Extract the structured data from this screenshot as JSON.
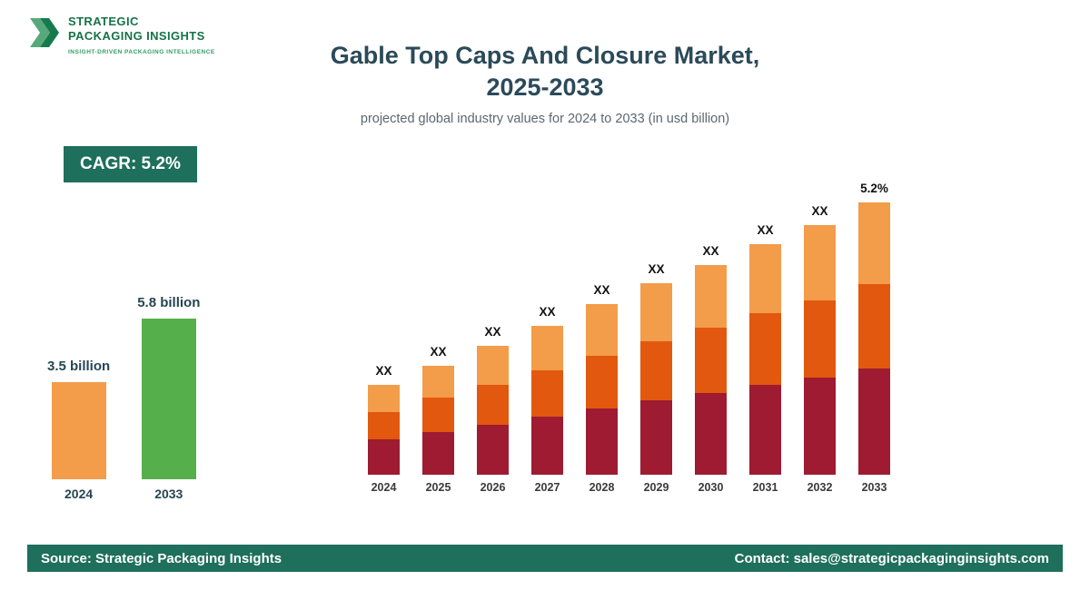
{
  "logo": {
    "line1": "STRATEGIC",
    "line2": "PACKAGING INSIGHTS",
    "tagline": "INSIGHT-DRIVEN PACKAGING INTELLIGENCE"
  },
  "header": {
    "title_line1": "Gable Top Caps And Closure Market,",
    "title_line2": "2025-2033",
    "subtitle": "projected global industry values for 2024 to 2033 (in usd billion)"
  },
  "cagr_badge": "CAGR: 5.2%",
  "footer": {
    "source": "Source: Strategic Packaging Insights",
    "contact": "Contact: sales@strategicpackaginginsights.com"
  },
  "colors": {
    "brand_teal": "#1e6f5c",
    "title_dark": "#2b4a59",
    "logo_green": "#157347",
    "bar_orange": "#F39C4A",
    "bar_green": "#55B04B",
    "segment_maroon": "#9E1B32",
    "segment_orange_red": "#E2580E",
    "segment_light_orange": "#F39C4A"
  },
  "chart_data": [
    {
      "type": "bar",
      "name": "market-size-comparison",
      "categories": [
        "2024",
        "2033"
      ],
      "values": [
        3.5,
        5.8
      ],
      "value_labels": [
        "3.5 billion",
        "5.8 billion"
      ],
      "bar_colors": [
        "#F39C4A",
        "#55B04B"
      ],
      "ylabel": "usd billion",
      "ylim": [
        0,
        5.8
      ]
    },
    {
      "type": "bar",
      "subtype": "stacked",
      "name": "yearly-projection-2024-2033",
      "categories": [
        "2024",
        "2025",
        "2026",
        "2027",
        "2028",
        "2029",
        "2030",
        "2031",
        "2032",
        "2033"
      ],
      "series": [
        {
          "name": "segment-bottom",
          "color": "#9E1B32",
          "values": [
            38,
            46,
            54,
            63,
            72,
            81,
            89,
            98,
            106,
            115
          ]
        },
        {
          "name": "segment-middle",
          "color": "#E2580E",
          "values": [
            30,
            37,
            43,
            50,
            57,
            64,
            71,
            78,
            84,
            92
          ]
        },
        {
          "name": "segment-top",
          "color": "#F39C4A",
          "values": [
            30,
            35,
            42,
            48,
            56,
            63,
            68,
            75,
            82,
            89
          ]
        }
      ],
      "bar_labels": [
        "XX",
        "XX",
        "XX",
        "XX",
        "XX",
        "XX",
        "XX",
        "XX",
        "XX",
        "5.2%"
      ],
      "legend": "none",
      "grid": false
    }
  ]
}
